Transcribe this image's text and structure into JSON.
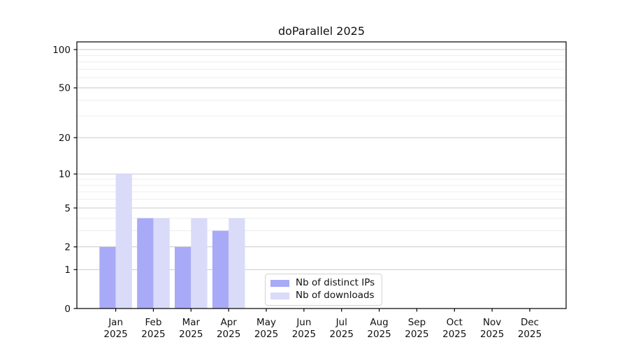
{
  "chart_data": {
    "type": "bar",
    "title": "doParallel 2025",
    "categories": [
      "Jan",
      "Feb",
      "Mar",
      "Apr",
      "May",
      "Jun",
      "Jul",
      "Aug",
      "Sep",
      "Oct",
      "Nov",
      "Dec"
    ],
    "category_year": "2025",
    "series": [
      {
        "name": "Nb of distinct IPs",
        "color": "#a8aaf8",
        "values": [
          2,
          4,
          2,
          3,
          0,
          0,
          0,
          0,
          0,
          0,
          0,
          0
        ]
      },
      {
        "name": "Nb of downloads",
        "color": "#d9dbf9",
        "values": [
          10,
          4,
          4,
          4,
          0,
          0,
          0,
          0,
          0,
          0,
          0,
          0
        ]
      }
    ],
    "y_scale": "log1p",
    "y_ticks": [
      0,
      1,
      2,
      5,
      10,
      20,
      50,
      100
    ],
    "y_minor_gridlines": [
      3,
      4,
      6,
      7,
      8,
      9,
      30,
      40,
      60,
      70,
      80,
      90
    ],
    "ylim": [
      0,
      100
    ],
    "grid": true,
    "legend_position": "inside-bottom-center"
  }
}
